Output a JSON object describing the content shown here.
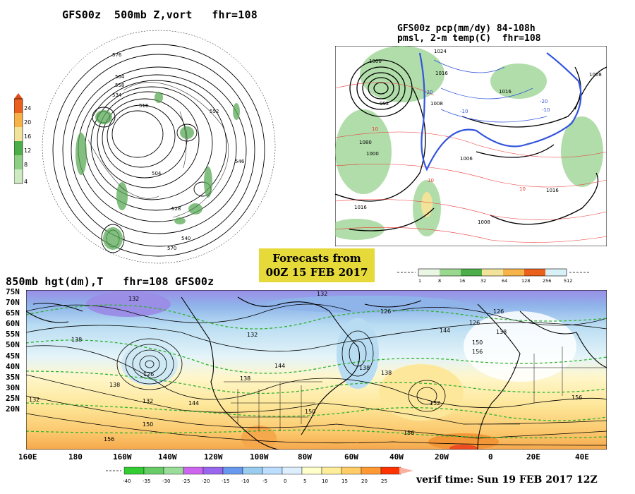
{
  "panels": {
    "hemispheric": {
      "title": "GFS00z  500mb Z,vort   fhr=108",
      "scale_values": [
        "24",
        "20",
        "16",
        "12",
        "8",
        "4"
      ],
      "height_labels": [
        "576",
        "564",
        "558",
        "534",
        "516",
        "504",
        "552",
        "528",
        "546",
        "540",
        "570"
      ]
    },
    "precip": {
      "title_line1": "GFS00z pcp(mm/dy) 84-108h",
      "title_line2": "pmsl, 2-m temp(C)  fhr=108",
      "pressure_labels": [
        "1000",
        "992",
        "1080",
        "1000",
        "1016",
        "1016",
        "1016",
        "1008",
        "1008",
        "1006",
        "1016",
        "1024",
        "1008"
      ],
      "temp_labels": [
        "-20",
        "-10",
        "10",
        "10",
        "-10",
        "-20",
        "10"
      ],
      "colorbar_values": [
        "1",
        "8",
        "16",
        "32",
        "64",
        "128",
        "256",
        "512"
      ]
    },
    "banner": {
      "line1": "Forecasts from",
      "line2": "00Z 15 FEB 2017"
    },
    "main": {
      "title": "850mb hgt(dm),T   fhr=108 GFS00z",
      "lat_labels": [
        "75N",
        "70N",
        "65N",
        "60N",
        "55N",
        "50N",
        "45N",
        "40N",
        "35N",
        "30N",
        "25N",
        "20N"
      ],
      "lon_labels": [
        "160E",
        "180",
        "160W",
        "140W",
        "120W",
        "100W",
        "80W",
        "60W",
        "40W",
        "20W",
        "0",
        "20E",
        "40E"
      ],
      "height_labels": [
        "132",
        "126",
        "126",
        "126",
        "132",
        "138",
        "144",
        "138",
        "138",
        "132",
        "126",
        "132",
        "144",
        "138",
        "150",
        "138",
        "156",
        "150",
        "152",
        "144",
        "150",
        "156",
        "156",
        "138",
        "132",
        "156"
      ],
      "colorbar_values": [
        "-40",
        "-35",
        "-30",
        "-25",
        "-20",
        "-15",
        "-10",
        "-5",
        "0",
        "5",
        "10",
        "15",
        "20",
        "25"
      ],
      "colorbar_colors": [
        "#3c3",
        "#6c6",
        "#9d9",
        "#c6e",
        "#96e",
        "#69e",
        "#9ce",
        "#bdf",
        "#def",
        "#ffc",
        "#fe9",
        "#fc6",
        "#f93",
        "#f30"
      ],
      "verif": "verif time: Sun 19 FEB 2017 12Z"
    }
  }
}
